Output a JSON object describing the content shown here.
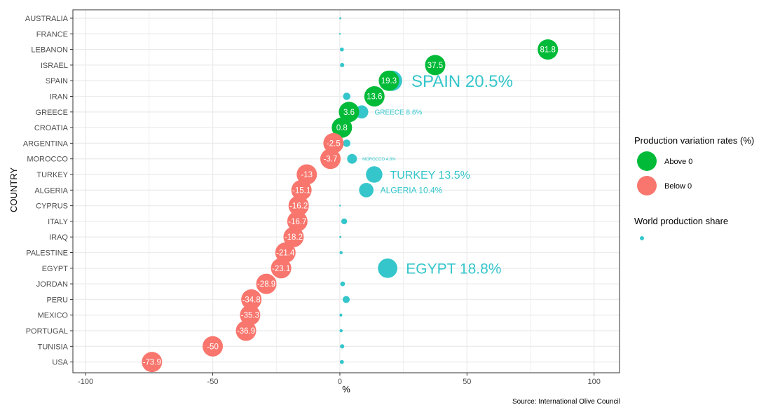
{
  "chart_data": {
    "type": "scatter",
    "xlabel": "%",
    "ylabel": "COUNTRY",
    "xlim": [
      -105,
      110
    ],
    "xticks": [
      -100,
      -50,
      0,
      50,
      100
    ],
    "xtick_labels": [
      "-100",
      "-50",
      "0",
      "50",
      "100"
    ],
    "grid": true,
    "legend_position": "right",
    "countries": [
      "AUSTRALIA",
      "FRANCE",
      "LEBANON",
      "ISRAEL",
      "SPAIN",
      "IRAN",
      "GREECE",
      "CROATIA",
      "ARGENTINA",
      "MOROCCO",
      "TURKEY",
      "ALGERIA",
      "CYPRUS",
      "ITALY",
      "IRAQ",
      "PALESTINE",
      "EGYPT",
      "JORDAN",
      "PERU",
      "MEXICO",
      "PORTUGAL",
      "TUNISIA",
      "USA"
    ],
    "variation_series": {
      "name": "Production variation rates (%)",
      "values": [
        null,
        null,
        81.8,
        37.5,
        19.3,
        13.6,
        3.6,
        0.8,
        -2.5,
        -3.7,
        -13,
        -15.1,
        -16.2,
        -16.7,
        -18.2,
        -21.4,
        -23.1,
        -28.9,
        -34.8,
        -35.3,
        -36.9,
        -50,
        -73.9
      ],
      "labels": [
        null,
        null,
        "81.8",
        "37.5",
        "19.3",
        "13.6",
        "3.6",
        "0.8",
        "-2.5",
        "-3.7",
        "-13",
        "-15.1",
        "-16.2",
        "-16.7",
        "-18.2",
        "-21.4",
        "-23.1",
        "-28.9",
        "-34.8",
        "-35.3",
        "-36.9",
        "-50",
        "-73.9"
      ]
    },
    "share_series": {
      "name": "World production share",
      "values": [
        0.2,
        0.0,
        0.8,
        0.9,
        20.5,
        2.7,
        8.6,
        0.2,
        2.7,
        4.8,
        13.5,
        10.4,
        0.1,
        1.7,
        0.2,
        0.5,
        18.8,
        1.1,
        2.5,
        0.4,
        0.5,
        0.9,
        0.8
      ],
      "labels": [
        null,
        null,
        null,
        null,
        "SPAIN 20.5%",
        null,
        "GREECE 8.6%",
        null,
        null,
        "MOROCCO 4.8%",
        "TURKEY 13.5%",
        "ALGERIA 10.4%",
        null,
        null,
        null,
        null,
        "EGYPT 18.8%",
        null,
        null,
        null,
        null,
        null,
        null
      ],
      "label_sizes": [
        0,
        0,
        0,
        0,
        24,
        0,
        10,
        0,
        0,
        6,
        16,
        12,
        0,
        0,
        0,
        0,
        21,
        0,
        0,
        0,
        0,
        0,
        0
      ]
    },
    "legend": {
      "variation_title": "Production variation rates (%)",
      "variation_items": [
        "Above 0",
        "Below 0"
      ],
      "share_title": "World production share"
    },
    "colors": {
      "above": "#00BA38",
      "below": "#F8766D",
      "share": "#35C6CB",
      "grid": "#EBEBEB",
      "axis_text": "#4D4D4D"
    },
    "caption": "Source: International Olive Council"
  }
}
